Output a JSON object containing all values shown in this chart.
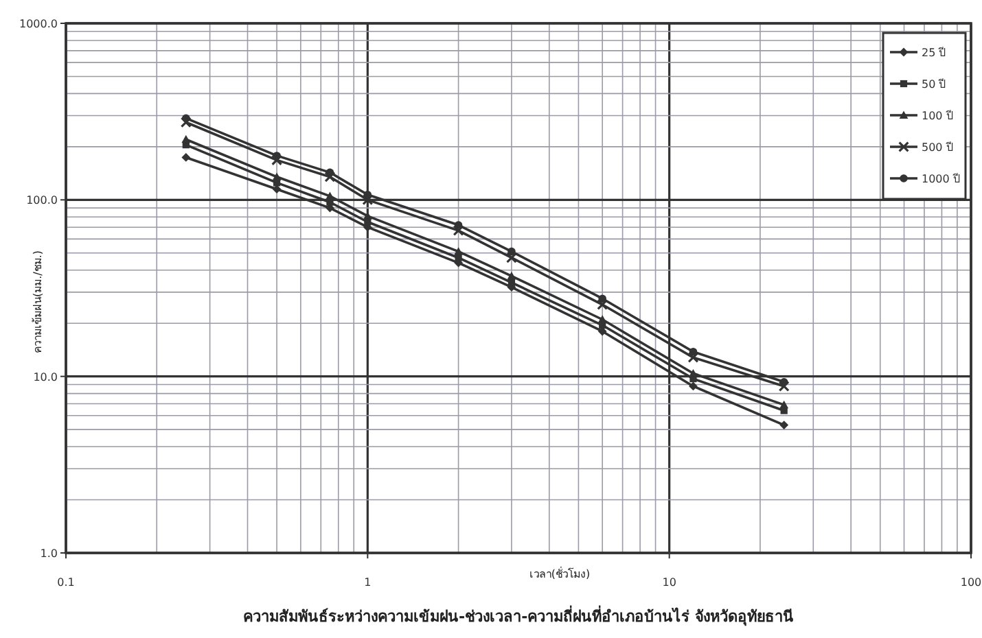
{
  "chart_data": {
    "type": "line",
    "title": "ความสัมพันธ์ระหว่างความเข้มฝน-ช่วงเวลา-ความถี่ฝนที่อำเภอบ้านไร่ จังหวัดอุทัยธานี",
    "xlabel": "เวลา(ชั่วโมง)",
    "ylabel": "ความเข้มฝน(มม./ชม.)",
    "log": "xy",
    "xlim": [
      0.1,
      100
    ],
    "xticks": [
      0.1,
      1,
      10,
      100
    ],
    "ylim": [
      1,
      1000
    ],
    "yticks": [
      {
        "value": 1,
        "label": "1.0"
      },
      {
        "value": 10,
        "label": "10.0"
      },
      {
        "value": 100,
        "label": "100.0"
      },
      {
        "value": 1000,
        "label": "1000.0"
      }
    ],
    "grid": true,
    "legend": "top right",
    "line_style": "solid",
    "x": [
      0.25,
      0.5,
      0.75,
      1,
      2,
      3,
      6,
      12,
      24
    ],
    "series": [
      {
        "name": "25 ปี",
        "color": "#333333",
        "marker": "diamond",
        "values": [
          174,
          115,
          90,
          70,
          44,
          32,
          18,
          8.8,
          5.3
        ]
      },
      {
        "name": "50 ปี",
        "color": "#333333",
        "marker": "square",
        "values": [
          205,
          125,
          97,
          75,
          47,
          34,
          19.5,
          9.7,
          6.4
        ]
      },
      {
        "name": "100 ปี",
        "color": "#333333",
        "marker": "triangle",
        "values": [
          220,
          135,
          105,
          81,
          51,
          37,
          21,
          10.4,
          6.9
        ]
      },
      {
        "name": "500 ปี",
        "color": "#333333",
        "marker": "cross",
        "values": [
          275,
          168,
          135,
          100,
          67,
          47,
          25.5,
          12.8,
          8.8
        ]
      },
      {
        "name": "1000 ปี",
        "color": "#333333",
        "marker": "circle",
        "values": [
          290,
          178,
          143,
          107,
          72,
          51,
          27.6,
          13.8,
          9.3
        ]
      }
    ]
  }
}
